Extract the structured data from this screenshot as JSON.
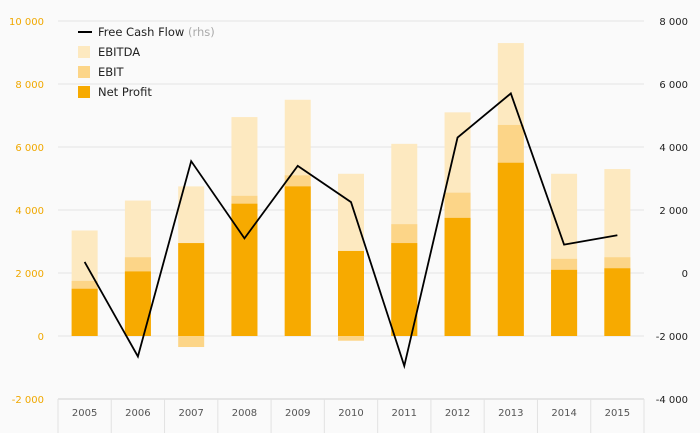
{
  "chart_data": {
    "type": "bar",
    "categories": [
      "2005",
      "2006",
      "2007",
      "2008",
      "2009",
      "2010",
      "2011",
      "2012",
      "2013",
      "2014",
      "2015"
    ],
    "series": [
      {
        "name": "EBITDA",
        "values": [
          3350,
          4300,
          4750,
          6950,
          7500,
          5150,
          6100,
          7100,
          9300,
          5150,
          5300
        ],
        "color": "#fde9c0"
      },
      {
        "name": "EBIT",
        "values": [
          1750,
          2500,
          -350,
          4450,
          5100,
          -150,
          3550,
          4550,
          6700,
          2450,
          2500
        ],
        "color": "#fcd588"
      },
      {
        "name": "Net Profit",
        "values": [
          1500,
          2050,
          2950,
          4200,
          4750,
          2700,
          2950,
          3750,
          5500,
          2100,
          2150
        ],
        "color": "#f7aa00"
      },
      {
        "name": "Free Cash Flow",
        "legend_suffix": "(rhs)",
        "axis": "right",
        "type": "line",
        "values": [
          350,
          -2650,
          3550,
          1100,
          3400,
          2250,
          -2950,
          4300,
          5700,
          900,
          1200
        ],
        "color": "#000000"
      }
    ],
    "y_left": {
      "ylim": [
        -2000,
        10000
      ],
      "ticks": [
        "-2 000",
        "0",
        "2 000",
        "4 000",
        "6 000",
        "8 000",
        "10 000"
      ],
      "tick_color": "#f0a800"
    },
    "y_right": {
      "ylim": [
        -4000,
        8000
      ],
      "ticks": [
        "-4 000",
        "-2 000",
        "0",
        "2 000",
        "4 000",
        "6 000",
        "8 000"
      ],
      "tick_color": "#222222"
    },
    "legend_position": "top-left",
    "grid": true,
    "title": "",
    "xlabel": "",
    "ylabel": ""
  }
}
